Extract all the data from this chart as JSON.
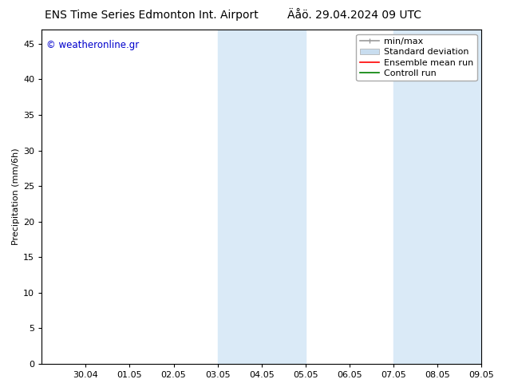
{
  "title_left": "ENS Time Series Edmonton Int. Airport",
  "title_right": "Äåö. 29.04.2024 09 UTC",
  "ylabel": "Precipitation (mm/6h)",
  "watermark": "© weatheronline.gr",
  "ylim": [
    0,
    47
  ],
  "yticks": [
    0,
    5,
    10,
    15,
    20,
    25,
    30,
    35,
    40,
    45
  ],
  "xtick_labels": [
    "30.04",
    "01.05",
    "02.05",
    "03.05",
    "04.05",
    "05.05",
    "06.05",
    "07.05",
    "08.05",
    "09.05"
  ],
  "x_min": 0.0,
  "x_max": 10.0,
  "shaded_regions": [
    [
      4.0,
      5.0
    ],
    [
      5.0,
      6.0
    ],
    [
      8.0,
      9.0
    ],
    [
      9.0,
      10.0
    ]
  ],
  "shade_color": "#daeaf7",
  "shade_alpha": 1.0,
  "bg_color": "#ffffff",
  "plot_bg_color": "#ffffff",
  "border_color": "#000000",
  "watermark_color": "#0000cc",
  "title_fontsize": 10,
  "tick_fontsize": 8,
  "ylabel_fontsize": 8,
  "legend_fontsize": 8,
  "legend_entries": [
    {
      "label": "min/max",
      "type": "line",
      "color": "#999999",
      "lw": 1.2
    },
    {
      "label": "Standard deviation",
      "type": "patch",
      "color": "#c8ddef"
    },
    {
      "label": "Ensemble mean run",
      "type": "line",
      "color": "#ff0000",
      "lw": 1.2
    },
    {
      "label": "Controll run",
      "type": "line",
      "color": "#008000",
      "lw": 1.2
    }
  ]
}
